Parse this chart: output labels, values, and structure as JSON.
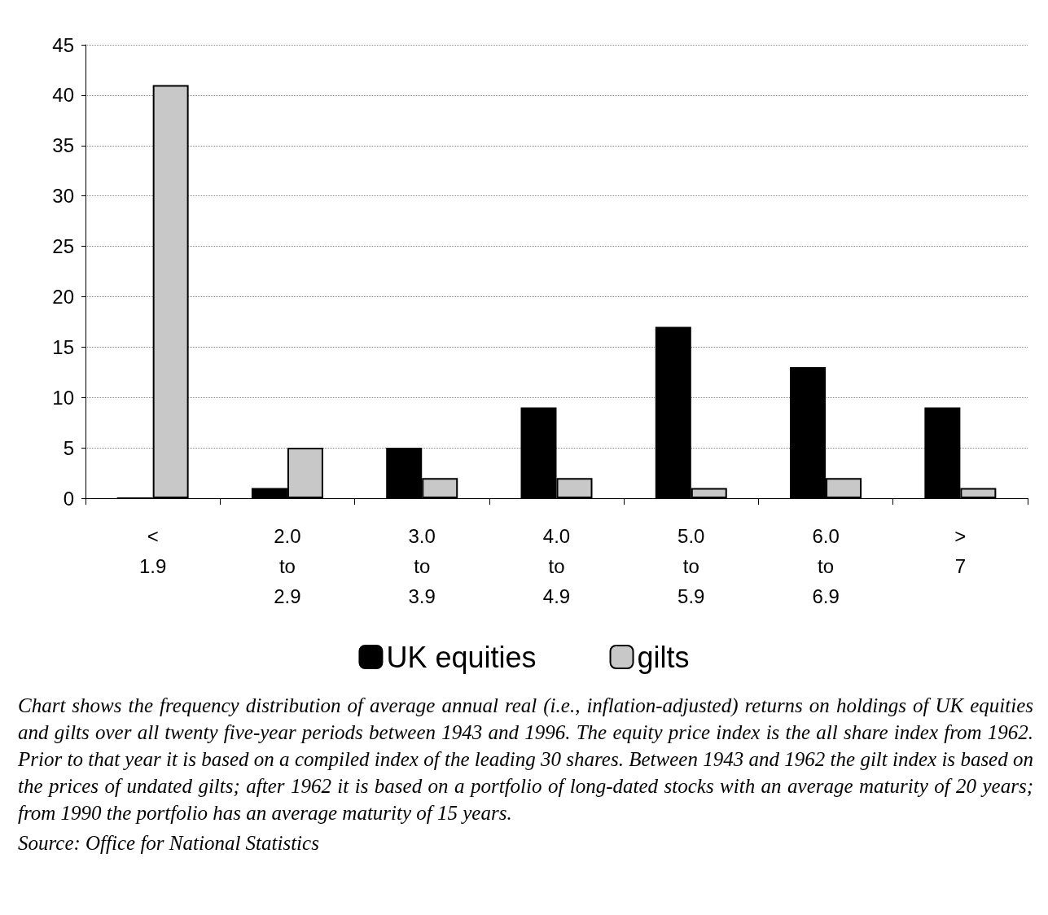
{
  "chart_data": {
    "type": "bar",
    "categories": [
      "<\n1.9",
      "2.0\nto\n2.9",
      "3.0\nto\n3.9",
      "4.0\nto\n4.9",
      "5.0\nto\n5.9",
      "6.0\nto\n6.9",
      ">\n7"
    ],
    "series": [
      {
        "name": "UK equities",
        "color": "#000000",
        "values": [
          0,
          1,
          5,
          9,
          17,
          13,
          9
        ]
      },
      {
        "name": "gilts",
        "color": "#c8c8c8",
        "values": [
          41,
          5,
          2,
          2,
          1,
          2,
          1
        ]
      }
    ],
    "ylim": [
      0,
      45
    ],
    "yticks": [
      0,
      5,
      10,
      15,
      20,
      25,
      30,
      35,
      40,
      45
    ],
    "grid": "y",
    "legend": "bottom",
    "annotations": [
      "Chart shows the frequency distribution of average annual real (i.e., inflation-adjusted) returns on holdings of UK equities and gilts over all twenty five-year periods between 1943 and 1996. The equity price index is the all share index from 1962. Prior to that year it is based on a compiled index of the leading 30 shares. Between 1943 and 1962 the gilt index is based on the prices of undated gilts; after 1962 it is based on a portfolio of long-dated stocks with an average maturity of 20 years; from 1990 the portfolio has an average maturity of 15 years.",
      "Source: Office for National Statistics"
    ]
  }
}
